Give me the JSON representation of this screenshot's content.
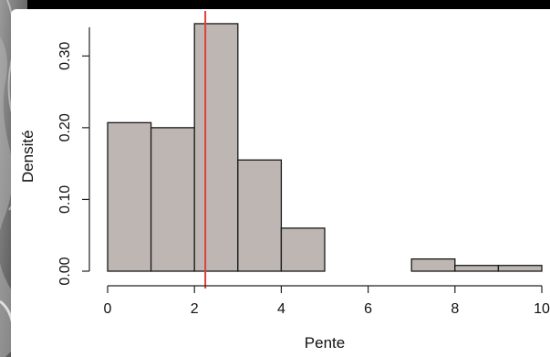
{
  "chart_data": {
    "type": "bar",
    "title": "",
    "xlabel": "Pente",
    "ylabel": "Densité",
    "bins": [
      {
        "from": 0,
        "to": 1,
        "density": 0.207
      },
      {
        "from": 1,
        "to": 2,
        "density": 0.2
      },
      {
        "from": 2,
        "to": 3,
        "density": 0.345
      },
      {
        "from": 3,
        "to": 4,
        "density": 0.155
      },
      {
        "from": 4,
        "to": 5,
        "density": 0.06
      },
      {
        "from": 5,
        "to": 6,
        "density": 0.0
      },
      {
        "from": 6,
        "to": 7,
        "density": 0.0
      },
      {
        "from": 7,
        "to": 8,
        "density": 0.017
      },
      {
        "from": 8,
        "to": 9,
        "density": 0.008
      },
      {
        "from": 9,
        "to": 10,
        "density": 0.008
      }
    ],
    "xlim": [
      0,
      10
    ],
    "ylim": [
      0,
      0.35
    ],
    "x_ticks": [
      "0",
      "2",
      "4",
      "6",
      "8",
      "10"
    ],
    "y_ticks": [
      "0.00",
      "0.10",
      "0.20",
      "0.30"
    ],
    "vline": {
      "x": 2.25,
      "color": "#e0403a"
    },
    "bar_color": "#bdb6b2",
    "grid": false,
    "legend": "none"
  }
}
